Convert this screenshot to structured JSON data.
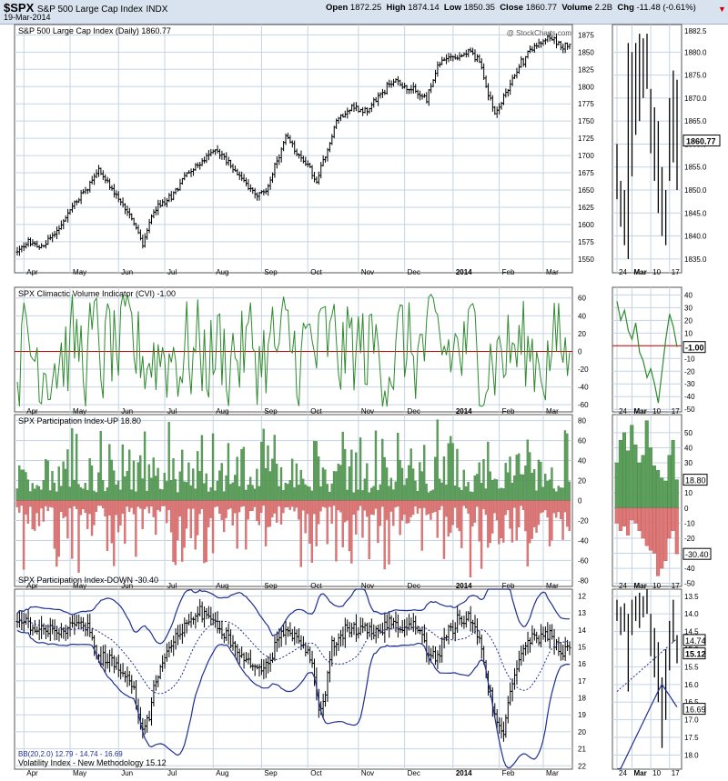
{
  "header": {
    "symbol": "$SPX",
    "name": "S&P 500 Large Cap Index",
    "exchange": "INDX",
    "date": "19-Mar-2014",
    "open_label": "Open",
    "open": "1872.25",
    "high_label": "High",
    "high": "1874.14",
    "low_label": "Low",
    "low": "1850.35",
    "close_label": "Close",
    "close": "1860.77",
    "volume_label": "Volume",
    "volume": "2.2B",
    "chg_label": "Chg",
    "chg": "-11.48 (-0.61%)",
    "watermark": "@ StockCharts.com"
  },
  "colors": {
    "background": "#ffffff",
    "header_bg": "#d9e3ef",
    "grid": "#c6d3e4",
    "price": "#000000",
    "cvi_line": "#2e8b2e",
    "zero_line": "#cc0000",
    "pi_up": "#5aa05a",
    "pi_down": "#e07878",
    "bb": "#1f2f8f",
    "label_box": "#000000"
  },
  "x_labels": [
    "Apr",
    "May",
    "Jun",
    "Jul",
    "Aug",
    "Sep",
    "Oct",
    "Nov",
    "Dec",
    "2014",
    "Feb",
    "Mar"
  ],
  "inset_x_labels": [
    "24",
    "Mar",
    "10",
    "17"
  ],
  "chart_data": [
    {
      "type": "ohlc",
      "title": "S&P 500 Large Cap Index (Daily) 1860.77",
      "ylim": [
        1530,
        1890
      ],
      "yticks": [
        1550,
        1575,
        1600,
        1625,
        1650,
        1675,
        1700,
        1725,
        1750,
        1775,
        1800,
        1825,
        1850,
        1875
      ],
      "waypoints": [
        [
          0,
          1560
        ],
        [
          5,
          1575
        ],
        [
          10,
          1565
        ],
        [
          18,
          1590
        ],
        [
          25,
          1625
        ],
        [
          33,
          1660
        ],
        [
          37,
          1680
        ],
        [
          45,
          1640
        ],
        [
          52,
          1610
        ],
        [
          57,
          1570
        ],
        [
          62,
          1620
        ],
        [
          70,
          1640
        ],
        [
          77,
          1675
        ],
        [
          84,
          1690
        ],
        [
          90,
          1710
        ],
        [
          96,
          1690
        ],
        [
          104,
          1660
        ],
        [
          109,
          1640
        ],
        [
          113,
          1650
        ],
        [
          118,
          1690
        ],
        [
          122,
          1725
        ],
        [
          128,
          1700
        ],
        [
          133,
          1680
        ],
        [
          136,
          1660
        ],
        [
          139,
          1690
        ],
        [
          145,
          1750
        ],
        [
          152,
          1770
        ],
        [
          159,
          1765
        ],
        [
          165,
          1790
        ],
        [
          172,
          1810
        ],
        [
          176,
          1800
        ],
        [
          180,
          1795
        ],
        [
          186,
          1780
        ],
        [
          191,
          1830
        ],
        [
          196,
          1845
        ],
        [
          200,
          1840
        ],
        [
          205,
          1850
        ],
        [
          210,
          1840
        ],
        [
          213,
          1800
        ],
        [
          217,
          1760
        ],
        [
          222,
          1790
        ],
        [
          228,
          1830
        ],
        [
          235,
          1860
        ],
        [
          242,
          1870
        ],
        [
          247,
          1860
        ],
        [
          251,
          1862
        ]
      ],
      "last_label": "1860.77",
      "inset_ylim": [
        1832,
        1886
      ],
      "inset_yticks": [
        1835,
        1840,
        1845,
        1850,
        1855,
        1860,
        1865,
        1870,
        1875,
        1880
      ],
      "inset_top_tick": "1882.5",
      "inset_bars": [
        [
          1848,
          1860
        ],
        [
          1842,
          1852
        ],
        [
          1838,
          1850
        ],
        [
          1835,
          1882
        ],
        [
          1853,
          1880
        ],
        [
          1862,
          1882
        ],
        [
          1865,
          1884
        ],
        [
          1870,
          1883
        ],
        [
          1872,
          1884
        ],
        [
          1858,
          1872
        ],
        [
          1852,
          1868
        ],
        [
          1845,
          1865
        ],
        [
          1840,
          1855
        ],
        [
          1838,
          1850
        ],
        [
          1852,
          1870
        ],
        [
          1856,
          1876
        ],
        [
          1850,
          1874
        ]
      ]
    },
    {
      "type": "line",
      "title": "SPX Climactic Volume Indicator (CVI) -1.00",
      "ylim": [
        -68,
        72
      ],
      "yticks": [
        -60,
        -40,
        -20,
        0,
        20,
        40,
        60
      ],
      "last_label": "-1.00",
      "inset_ylim": [
        -52,
        46
      ],
      "inset_yticks": [
        -50,
        -40,
        -30,
        -20,
        -10,
        0,
        10,
        20,
        30,
        40
      ],
      "inset_values": [
        35,
        20,
        28,
        12,
        5,
        18,
        -5,
        -12,
        -25,
        -18,
        -30,
        -45,
        -20,
        5,
        25,
        15,
        -1
      ]
    },
    {
      "type": "bar",
      "title": "SPX Participation Index-UP 18.80",
      "title2": "SPX Participation Index-DOWN -30.40",
      "ylim": [
        -86,
        86
      ],
      "yticks": [
        -80,
        -60,
        -40,
        -20,
        0,
        20,
        40,
        60,
        80
      ],
      "last_up": "18.80",
      "last_down": "-30.40",
      "inset_ylim": [
        -52,
        62
      ],
      "inset_yticks": [
        -50,
        -40,
        -30,
        -20,
        -10,
        0,
        10,
        20,
        30,
        40,
        50
      ],
      "inset_up": [
        30,
        45,
        50,
        38,
        55,
        42,
        30,
        35,
        58,
        40,
        28,
        25,
        20,
        18,
        35,
        45,
        18.8
      ],
      "inset_down": [
        -10,
        -15,
        -12,
        -18,
        -8,
        -10,
        -15,
        -20,
        -25,
        -28,
        -30,
        -45,
        -40,
        -35,
        -20,
        -15,
        -30.4
      ]
    },
    {
      "type": "ohlc",
      "title": "Volatility Index - New Methodology 15.12",
      "legend": "BB(20,2.0) 12.79 - 14.74 - 16.69",
      "ylim": [
        22.2,
        11.6
      ],
      "yticks": [
        12,
        13,
        14,
        15,
        16,
        17,
        18,
        19,
        20,
        21,
        22
      ],
      "waypoints": [
        [
          0,
          13.5
        ],
        [
          10,
          13.8
        ],
        [
          18,
          14.2
        ],
        [
          25,
          13.5
        ],
        [
          32,
          14
        ],
        [
          38,
          15.5
        ],
        [
          45,
          16
        ],
        [
          52,
          17
        ],
        [
          57,
          20
        ],
        [
          60,
          19
        ],
        [
          64,
          16.5
        ],
        [
          70,
          15
        ],
        [
          77,
          13.5
        ],
        [
          84,
          13
        ],
        [
          90,
          13.5
        ],
        [
          96,
          14.5
        ],
        [
          102,
          15.5
        ],
        [
          107,
          16.2
        ],
        [
          112,
          16.5
        ],
        [
          116,
          15.5
        ],
        [
          120,
          14
        ],
        [
          125,
          14.2
        ],
        [
          130,
          15
        ],
        [
          134,
          16
        ],
        [
          137,
          19
        ],
        [
          140,
          17.5
        ],
        [
          143,
          15
        ],
        [
          150,
          14
        ],
        [
          158,
          13.8
        ],
        [
          165,
          14.2
        ],
        [
          170,
          13.5
        ],
        [
          175,
          14
        ],
        [
          180,
          13.5
        ],
        [
          186,
          15
        ],
        [
          190,
          15.8
        ],
        [
          195,
          14.2
        ],
        [
          200,
          13.5
        ],
        [
          205,
          13.2
        ],
        [
          210,
          14.5
        ],
        [
          213,
          16.5
        ],
        [
          217,
          19
        ],
        [
          221,
          20
        ],
        [
          225,
          17
        ],
        [
          230,
          15
        ],
        [
          236,
          14.5
        ],
        [
          242,
          14.2
        ],
        [
          247,
          15.5
        ],
        [
          251,
          15.12
        ]
      ],
      "last_label": "15.12",
      "bb_upper": "16.69",
      "bb_mid": "14.74",
      "inset_ylim": [
        18.4,
        13.3
      ],
      "inset_yticks": [
        13.5,
        14.0,
        14.5,
        15.0,
        15.5,
        16.0,
        16.5,
        17.0,
        17.5,
        18.0
      ],
      "inset_bars": [
        [
          13.6,
          14.2
        ],
        [
          13.8,
          14.6
        ],
        [
          13.7,
          14.5
        ],
        [
          14.0,
          16.2
        ],
        [
          13.6,
          14.6
        ],
        [
          13.5,
          14.2
        ],
        [
          13.4,
          14.4
        ],
        [
          13.5,
          14.1
        ],
        [
          13.3,
          14.0
        ],
        [
          14.0,
          15.2
        ],
        [
          14.4,
          15.8
        ],
        [
          14.8,
          16.5
        ],
        [
          15.8,
          17.8
        ],
        [
          15.0,
          17.0
        ],
        [
          14.2,
          15.6
        ],
        [
          13.6,
          14.8
        ],
        [
          14.6,
          15.4
        ]
      ]
    }
  ]
}
